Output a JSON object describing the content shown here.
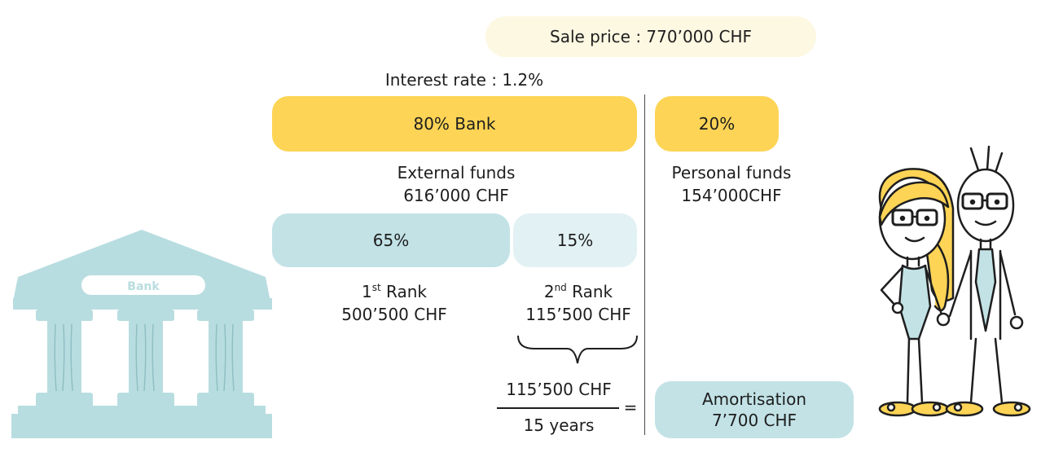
{
  "sale_price": "Sale price : 770’000 CHF",
  "interest_rate": "Interest rate : 1.2%",
  "bank_share": "80% Bank",
  "personal_share": "20%",
  "external_funds": {
    "label": "External funds",
    "amount": "616’000 CHF"
  },
  "personal_funds": {
    "label": "Personal funds",
    "amount": "154’000CHF"
  },
  "first_rank": {
    "percent": "65%",
    "ordinal_num": "1",
    "ordinal_suffix": "st",
    "label": " Rank",
    "amount": "500’500 CHF"
  },
  "second_rank": {
    "percent": "15%",
    "ordinal_num": "2",
    "ordinal_suffix": "nd",
    "label": " Rank",
    "amount": "115’500 CHF"
  },
  "formula": {
    "numerator": "115’500 CHF",
    "denominator": "15 years",
    "equals": "="
  },
  "amortisation": {
    "label": "Amortisation",
    "amount": "7’700 CHF"
  },
  "bank_sign": "Bank",
  "colors": {
    "yellow": "#fdd455",
    "cream": "#fdf8e2",
    "teal": "#c2e2e6",
    "teal_light": "#e2f1f3",
    "bank_building": "#b8dde0",
    "text": "#1e1e1e"
  },
  "icons": [
    "bank-building-icon",
    "couple-illustration-icon",
    "curly-brace-icon"
  ]
}
